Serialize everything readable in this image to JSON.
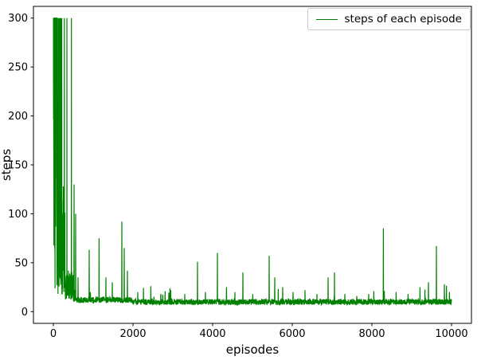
{
  "figure": {
    "background": "#ffffff"
  },
  "chart_data": {
    "type": "line",
    "title": "",
    "xlabel": "episodes",
    "ylabel": "steps",
    "xlim": [
      0,
      10000
    ],
    "ylim": [
      0,
      300
    ],
    "x_ticks": [
      0,
      2000,
      4000,
      6000,
      8000,
      10000
    ],
    "y_ticks": [
      0,
      50,
      100,
      150,
      200,
      250,
      300
    ],
    "grid": false,
    "legend": {
      "label": "steps of each episode",
      "position": "upper-right"
    },
    "axes": {
      "x_display_range": [
        -500,
        10500
      ],
      "y_display_range": [
        -12,
        312
      ]
    },
    "series": [
      {
        "name": "steps of each episode",
        "color": "#008000",
        "description": "Steps taken per episode over 10000 training episodes: chaotic start with many episodes hitting the 300-step cap during roughly the first 300 episodes, rapid convergence to a baseline of about 8-12 steps, with sporadic exploration spikes afterwards.",
        "synthesis": {
          "seed": 1337,
          "sample_step": 4,
          "early_step": 2,
          "early_phase_end": 290,
          "early_cap_prob": 0.45,
          "early_cap_decay": 350,
          "early_min": 15,
          "transition_end": 500,
          "baseline_min": 7,
          "baseline_max": 13,
          "minor_spike_prob": 0.012,
          "minor_spike_max": 14,
          "cap": 300
        },
        "notable_spikes": [
          [
            340,
            300
          ],
          [
            455,
            300
          ],
          [
            520,
            130
          ],
          [
            560,
            100
          ],
          [
            620,
            35
          ],
          [
            900,
            63
          ],
          [
            1150,
            75
          ],
          [
            1320,
            35
          ],
          [
            1480,
            30
          ],
          [
            1720,
            92
          ],
          [
            1780,
            65
          ],
          [
            1860,
            42
          ],
          [
            2120,
            20
          ],
          [
            2450,
            26
          ],
          [
            2700,
            18
          ],
          [
            2950,
            22
          ],
          [
            3300,
            18
          ],
          [
            3620,
            51
          ],
          [
            3820,
            20
          ],
          [
            4120,
            60
          ],
          [
            4350,
            25
          ],
          [
            4560,
            20
          ],
          [
            4760,
            40
          ],
          [
            5010,
            18
          ],
          [
            5420,
            57
          ],
          [
            5560,
            35
          ],
          [
            5760,
            25
          ],
          [
            6020,
            20
          ],
          [
            6320,
            22
          ],
          [
            6620,
            18
          ],
          [
            6900,
            35
          ],
          [
            7060,
            40
          ],
          [
            7320,
            18
          ],
          [
            7620,
            16
          ],
          [
            7920,
            18
          ],
          [
            8290,
            85
          ],
          [
            8610,
            20
          ],
          [
            8910,
            18
          ],
          [
            9210,
            25
          ],
          [
            9420,
            30
          ],
          [
            9620,
            67
          ],
          [
            9820,
            28
          ],
          [
            9950,
            20
          ]
        ]
      }
    ]
  }
}
